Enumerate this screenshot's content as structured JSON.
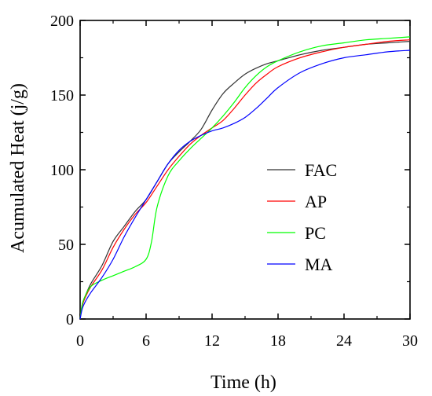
{
  "chart_data": {
    "type": "line",
    "title": "",
    "xlabel": "Time (h)",
    "ylabel": "Acumulated Heat (j/g)",
    "xlim": [
      0,
      30
    ],
    "ylim": [
      0,
      200
    ],
    "xticks": [
      0,
      6,
      12,
      18,
      24,
      30
    ],
    "yticks": [
      0,
      50,
      100,
      150,
      200
    ],
    "grid": false,
    "legend_position": "center-right",
    "series": [
      {
        "name": "FAC",
        "color": "#333333",
        "x": [
          0,
          0.2,
          0.5,
          1,
          2,
          3,
          4,
          5,
          6,
          7,
          8,
          9,
          10,
          11,
          12,
          13,
          14,
          15,
          16,
          17,
          18,
          20,
          22,
          24,
          26,
          28,
          30
        ],
        "y": [
          0,
          10,
          16,
          24,
          36,
          52,
          62,
          72,
          80,
          92,
          104,
          112,
          119,
          127,
          140,
          151,
          158,
          164,
          168,
          171,
          173,
          177,
          180,
          182,
          184,
          185,
          186
        ]
      },
      {
        "name": "AP",
        "color": "#ff0000",
        "x": [
          0,
          0.2,
          0.5,
          1,
          2,
          3,
          4,
          5,
          6,
          7,
          8,
          9,
          10,
          11,
          12,
          13,
          14,
          15,
          16,
          17,
          18,
          20,
          22,
          24,
          26,
          28,
          30
        ],
        "y": [
          0,
          9,
          15,
          22,
          33,
          48,
          60,
          70,
          78,
          89,
          100,
          109,
          117,
          123,
          128,
          133,
          141,
          150,
          158,
          164,
          169,
          175,
          179,
          182,
          184,
          186,
          187
        ]
      },
      {
        "name": "PC",
        "color": "#00ff00",
        "x": [
          0,
          0.2,
          0.5,
          1,
          2,
          3,
          4,
          5,
          6,
          6.5,
          7,
          8,
          9,
          10,
          11,
          12,
          13,
          14,
          15,
          16,
          17,
          18,
          20,
          22,
          24,
          26,
          28,
          30
        ],
        "y": [
          0,
          10,
          16,
          22,
          26,
          29,
          32,
          35,
          40,
          52,
          75,
          96,
          106,
          114,
          121,
          128,
          136,
          145,
          155,
          163,
          169,
          173,
          179,
          183,
          185,
          187,
          188,
          189
        ]
      },
      {
        "name": "MA",
        "color": "#0000ff",
        "x": [
          0,
          0.2,
          0.5,
          1,
          2,
          3,
          4,
          5,
          6,
          7,
          8,
          9,
          10,
          11,
          12,
          13,
          14,
          15,
          16,
          17,
          18,
          20,
          22,
          24,
          26,
          28,
          30
        ],
        "y": [
          0,
          7,
          12,
          18,
          28,
          40,
          55,
          68,
          80,
          92,
          104,
          113,
          119,
          123,
          126,
          128,
          131,
          135,
          141,
          148,
          155,
          165,
          171,
          175,
          177,
          179,
          180
        ]
      }
    ]
  }
}
